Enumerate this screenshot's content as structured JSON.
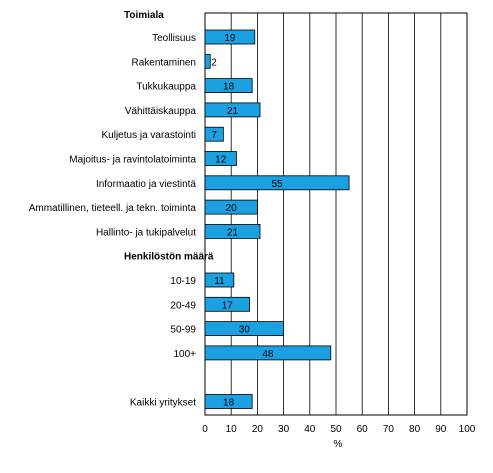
{
  "chart_data": {
    "type": "bar",
    "orientation": "horizontal",
    "title": "",
    "xlabel": "%",
    "ylabel": "",
    "xlim": [
      0,
      100
    ],
    "xticks": [
      0,
      10,
      20,
      30,
      40,
      50,
      60,
      70,
      80,
      90,
      100
    ],
    "grid": "vertical",
    "bar_color": "#1ba1e2",
    "groups": [
      {
        "heading": "Toimiala",
        "categories": [
          "Teollisuus",
          "Rakentaminen",
          "Tukkukauppa",
          "Vähittäiskauppa",
          "Kuljetus ja varastointi",
          "Majoitus- ja ravintolatoiminta",
          "Informaatio ja viestintä",
          "Ammatillinen, tieteell. ja tekn. toiminta",
          "Hallinto- ja tukipalvelut"
        ],
        "values": [
          19,
          2,
          18,
          21,
          7,
          12,
          55,
          20,
          21
        ]
      },
      {
        "heading": "Henkilöstön määrä",
        "categories": [
          "10-19",
          "20-49",
          "50-99",
          "100+"
        ],
        "values": [
          11,
          17,
          30,
          48
        ]
      },
      {
        "heading": "",
        "categories": [
          "Kaikki yritykset"
        ],
        "values": [
          18
        ]
      }
    ]
  }
}
